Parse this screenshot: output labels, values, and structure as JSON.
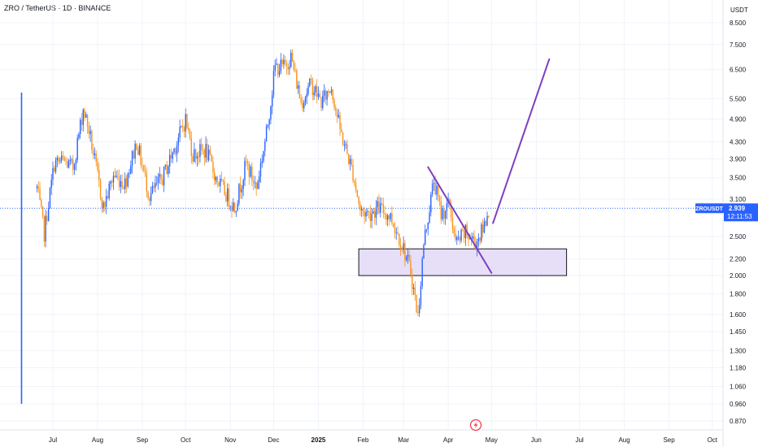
{
  "header": {
    "symbol": "ZRO",
    "sep1": " / ",
    "quote": "TetherUS",
    "sep2": " · ",
    "interval": "1D",
    "sep3": " · ",
    "exchange": "BINANCE"
  },
  "price_axis": {
    "currency": "USDT",
    "scale": "log",
    "ticks": [
      "8.500",
      "7.500",
      "6.500",
      "5.500",
      "4.900",
      "4.300",
      "3.900",
      "3.500",
      "3.100",
      "2.500",
      "2.200",
      "2.000",
      "1.800",
      "1.600",
      "1.450",
      "1.300",
      "1.180",
      "1.060",
      "0.960",
      "0.870"
    ]
  },
  "time_axis": {
    "labels": [
      "Jul",
      "Aug",
      "Sep",
      "Oct",
      "Nov",
      "Dec",
      "2025",
      "Feb",
      "Mar",
      "Apr",
      "May",
      "Jun",
      "Jul",
      "Aug",
      "Sep",
      "Oct"
    ]
  },
  "last_price": {
    "symbol_label": "ZROUSDT",
    "price": "2.939",
    "countdown": "12:11:53"
  },
  "colors": {
    "up": "#2962ff",
    "down": "#f7931a",
    "drawing": "#7e3fbf",
    "zone_fill": "#e3d9f7",
    "zone_stroke": "#131722",
    "last_price_bg": "#2962ff",
    "grid": "#f0f3fa",
    "axis_text": "#131722"
  },
  "chart_data": {
    "type": "candlestick",
    "scale": "log",
    "ylim": [
      0.82,
      9.2
    ],
    "xlim": [
      "2024-06-20",
      "2025-10-31"
    ],
    "listing_wick": {
      "date": "2024-06-20",
      "high": 5.7,
      "low": 0.96
    },
    "keypoints": [
      [
        "2024-06-20",
        3.3
      ],
      [
        "2024-06-25",
        2.55
      ],
      [
        "2024-07-02",
        3.8
      ],
      [
        "2024-07-08",
        3.85
      ],
      [
        "2024-07-15",
        3.7
      ],
      [
        "2024-07-22",
        5.2
      ],
      [
        "2024-07-26",
        4.6
      ],
      [
        "2024-08-05",
        2.95
      ],
      [
        "2024-08-12",
        3.55
      ],
      [
        "2024-08-20",
        3.4
      ],
      [
        "2024-08-28",
        4.3
      ],
      [
        "2024-09-06",
        3.15
      ],
      [
        "2024-09-15",
        3.5
      ],
      [
        "2024-09-25",
        4.3
      ],
      [
        "2024-10-01",
        4.9
      ],
      [
        "2024-10-06",
        4.0
      ],
      [
        "2024-10-15",
        4.1
      ],
      [
        "2024-10-22",
        3.5
      ],
      [
        "2024-11-04",
        2.95
      ],
      [
        "2024-11-12",
        3.8
      ],
      [
        "2024-11-19",
        3.3
      ],
      [
        "2024-11-26",
        4.5
      ],
      [
        "2024-12-02",
        6.6
      ],
      [
        "2024-12-08",
        6.6
      ],
      [
        "2024-12-13",
        7.0
      ],
      [
        "2024-12-20",
        5.4
      ],
      [
        "2024-12-27",
        6.0
      ],
      [
        "2025-01-03",
        5.4
      ],
      [
        "2025-01-10",
        5.9
      ],
      [
        "2025-01-16",
        4.6
      ],
      [
        "2025-01-25",
        3.6
      ],
      [
        "2025-01-30",
        2.9
      ],
      [
        "2025-02-05",
        2.85
      ],
      [
        "2025-02-12",
        2.95
      ],
      [
        "2025-02-20",
        2.8
      ],
      [
        "2025-02-28",
        2.4
      ],
      [
        "2025-03-06",
        2.05
      ],
      [
        "2025-03-11",
        1.58
      ],
      [
        "2025-03-15",
        2.4
      ],
      [
        "2025-03-22",
        3.45
      ],
      [
        "2025-03-27",
        2.85
      ],
      [
        "2025-04-02",
        3.0
      ],
      [
        "2025-04-06",
        2.4
      ],
      [
        "2025-04-13",
        2.55
      ],
      [
        "2025-04-20",
        2.42
      ],
      [
        "2025-04-25",
        2.6
      ],
      [
        "2025-04-29",
        2.94
      ]
    ],
    "demand_zone": {
      "from": "2025-01-29",
      "to": "2025-06-22",
      "low": 2.0,
      "high": 2.33
    },
    "trend_lines": [
      {
        "from": [
          "2025-03-18",
          3.72
        ],
        "to": [
          "2025-05-01",
          2.03
        ]
      },
      {
        "from": [
          "2025-05-02",
          2.7
        ],
        "to": [
          "2025-06-10",
          6.9
        ]
      }
    ]
  }
}
